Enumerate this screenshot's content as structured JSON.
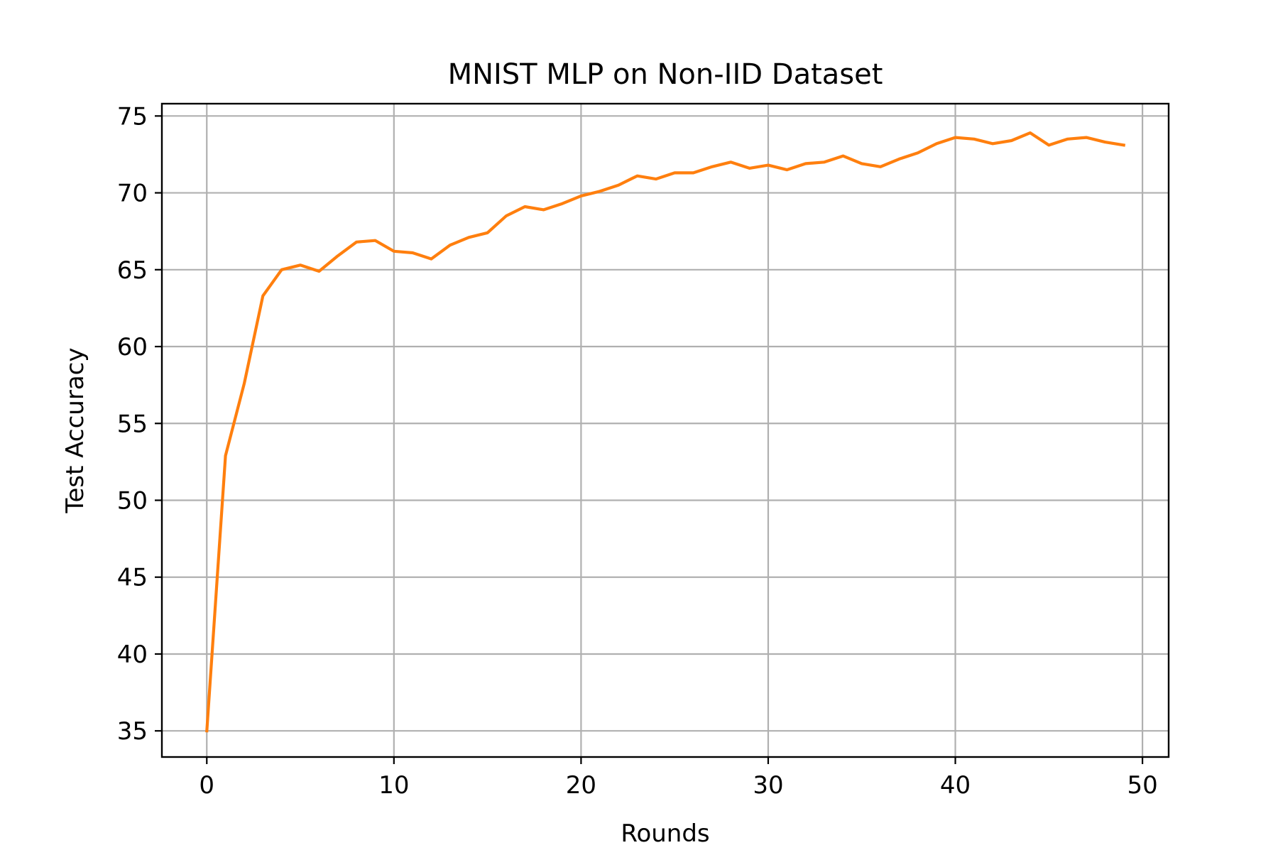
{
  "chart_data": {
    "type": "line",
    "title": "MNIST MLP on Non-IID Dataset",
    "xlabel": "Rounds",
    "ylabel": "Test Accuracy",
    "xlim": [
      -2.4,
      51.4
    ],
    "ylim": [
      33.3,
      75.8
    ],
    "xticks": [
      0,
      10,
      20,
      30,
      40,
      50
    ],
    "yticks": [
      35,
      40,
      45,
      50,
      55,
      60,
      65,
      70,
      75
    ],
    "grid": true,
    "legend": "none",
    "series": [
      {
        "color": "#ff7f0e",
        "x": [
          0,
          1,
          2,
          3,
          4,
          5,
          6,
          7,
          8,
          9,
          10,
          11,
          12,
          13,
          14,
          15,
          16,
          17,
          18,
          19,
          20,
          21,
          22,
          23,
          24,
          25,
          26,
          27,
          28,
          29,
          30,
          31,
          32,
          33,
          34,
          35,
          36,
          37,
          38,
          39,
          40,
          41,
          42,
          43,
          44,
          45,
          46,
          47,
          48,
          49
        ],
        "y": [
          35.0,
          52.9,
          57.6,
          63.3,
          65.0,
          65.3,
          64.9,
          65.9,
          66.8,
          66.9,
          66.2,
          66.1,
          65.7,
          66.6,
          67.1,
          67.4,
          68.5,
          69.1,
          68.9,
          69.3,
          69.8,
          70.1,
          70.5,
          71.1,
          70.9,
          71.3,
          71.3,
          71.7,
          72.0,
          71.6,
          71.8,
          71.5,
          71.9,
          72.0,
          72.4,
          71.9,
          71.7,
          72.2,
          72.6,
          73.2,
          73.6,
          73.5,
          73.2,
          73.4,
          73.9,
          73.1,
          73.5,
          73.6,
          73.3,
          73.1
        ]
      }
    ]
  }
}
